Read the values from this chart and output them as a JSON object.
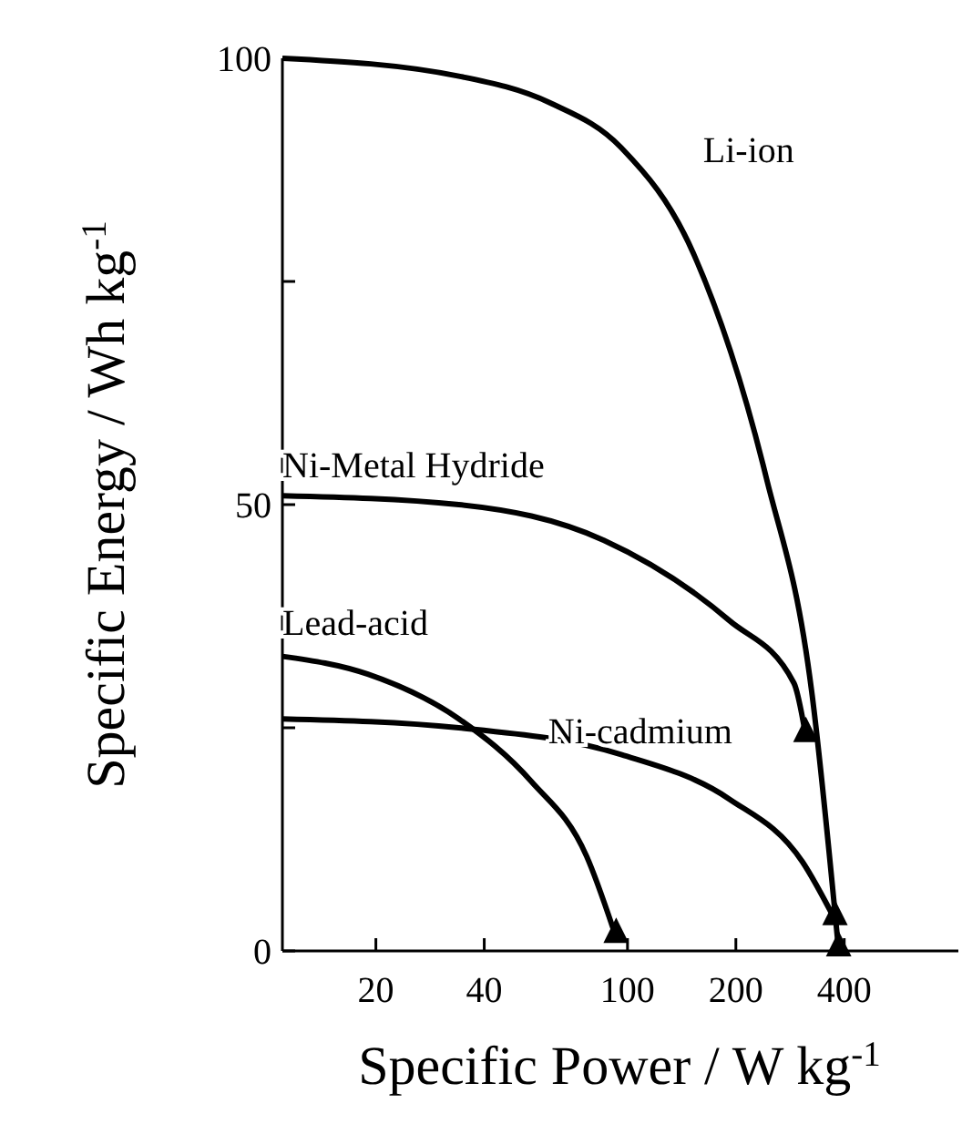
{
  "chart_data": {
    "type": "line",
    "xlabel": "Specific Power / W kg$^{-1}$",
    "ylabel": "Specific Energy / Wh kg$^{-1}$",
    "log": "x",
    "xlim": [
      11,
      830
    ],
    "xticks": [
      20,
      40,
      100,
      200,
      400
    ],
    "ylim": [
      0,
      100
    ],
    "yticks": [
      0,
      {
        "value": 25,
        "label": null
      },
      50,
      {
        "value": 75,
        "label": null
      },
      100
    ],
    "grid": false,
    "series": [
      {
        "name": "Li-ion",
        "color": "#000000",
        "x": [
          11,
          34,
          61,
          96,
          153,
          243,
          325,
          386
        ],
        "values": [
          100,
          98,
          95,
          90,
          78,
          53,
          29,
          0
        ]
      },
      {
        "name": "Ni-Metal Hydride",
        "color": "#000000",
        "x": [
          11,
          34,
          86,
          192,
          290,
          313
        ],
        "values": [
          51,
          50,
          46,
          37,
          30,
          24
        ]
      },
      {
        "name": "Lead-acid",
        "color": "#000000",
        "x": [
          11,
          19,
          34,
          54,
          77,
          93
        ],
        "values": [
          33,
          31,
          26,
          19,
          10.6,
          1.5
        ]
      },
      {
        "name": "Ni-cadmium",
        "color": "#000000",
        "x": [
          11,
          34,
          96,
          192,
          306,
          377
        ],
        "values": [
          26,
          25,
          22,
          17,
          10,
          3.5
        ]
      }
    ]
  }
}
